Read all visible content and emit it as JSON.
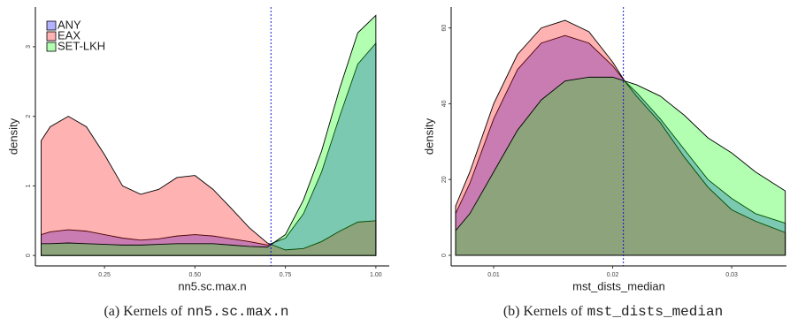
{
  "chart_data": [
    {
      "type": "area",
      "caption": "(a) Kernels of",
      "caption_code": "nn5.sc.max.n",
      "x_label": "nn5.sc.max.n",
      "y_label": "density",
      "x": [
        0.075,
        0.1,
        0.15,
        0.2,
        0.25,
        0.3,
        0.35,
        0.4,
        0.45,
        0.5,
        0.55,
        0.6,
        0.65,
        0.7,
        0.75,
        0.8,
        0.85,
        0.9,
        0.95,
        1.0
      ],
      "series": [
        {
          "name": "ANY",
          "color": "#0000ff",
          "values": [
            0.3,
            0.34,
            0.37,
            0.35,
            0.3,
            0.25,
            0.22,
            0.24,
            0.28,
            0.3,
            0.28,
            0.24,
            0.2,
            0.15,
            0.25,
            0.6,
            1.2,
            2.0,
            2.75,
            3.05
          ]
        },
        {
          "name": "EAX",
          "color": "#ff0000",
          "values": [
            1.65,
            1.85,
            2.0,
            1.85,
            1.45,
            1.0,
            0.88,
            0.95,
            1.12,
            1.15,
            0.95,
            0.68,
            0.4,
            0.18,
            0.08,
            0.1,
            0.2,
            0.35,
            0.48,
            0.5
          ]
        },
        {
          "name": "SET-LKH",
          "color": "#00ff00",
          "values": [
            0.17,
            0.17,
            0.18,
            0.17,
            0.16,
            0.15,
            0.15,
            0.16,
            0.17,
            0.17,
            0.17,
            0.15,
            0.13,
            0.12,
            0.3,
            0.8,
            1.5,
            2.4,
            3.2,
            3.45
          ]
        }
      ],
      "fill_opacity": 0.3,
      "vline": 0.71,
      "legend": "top-left",
      "xlim": [
        0.059,
        1.037
      ],
      "ylim": [
        -0.15,
        3.57
      ],
      "xticks": [
        {
          "value": 0.25,
          "label": "0.25"
        },
        {
          "value": 0.5,
          "label": "0.50"
        },
        {
          "value": 0.75,
          "label": "0.75"
        },
        {
          "value": 1.0,
          "label": "1.00"
        }
      ],
      "yticks": [
        0,
        1,
        2,
        3
      ]
    },
    {
      "type": "area",
      "caption": "(b) Kernels of",
      "caption_code": "mst_dists_median",
      "x_label": "mst_dists_median",
      "y_label": "density",
      "x": [
        0.0068,
        0.008,
        0.01,
        0.012,
        0.014,
        0.016,
        0.018,
        0.02,
        0.021,
        0.022,
        0.024,
        0.026,
        0.028,
        0.03,
        0.032,
        0.0345
      ],
      "series": [
        {
          "name": "ANY",
          "color": "#0000ff",
          "values": [
            11,
            19,
            36,
            49,
            56,
            58,
            56,
            50,
            46,
            43,
            36,
            28,
            20,
            15,
            11,
            8.5
          ]
        },
        {
          "name": "EAX",
          "color": "#ff0000",
          "values": [
            13,
            22,
            40,
            53,
            60,
            62,
            59,
            51,
            46,
            42,
            35,
            26,
            18,
            12,
            9,
            6
          ]
        },
        {
          "name": "SET-LKH",
          "color": "#00ff00",
          "values": [
            6.5,
            11,
            22,
            33,
            41,
            46,
            47,
            47,
            46,
            45,
            42,
            37,
            31,
            27,
            22,
            17
          ]
        }
      ],
      "fill_opacity": 0.3,
      "vline": 0.0209,
      "xlim": [
        0.00643,
        0.0346
      ],
      "ylim": [
        -2.8,
        65.5
      ],
      "xticks": [
        0.01,
        0.02,
        0.03
      ],
      "yticks": [
        0,
        20,
        40,
        60
      ]
    }
  ]
}
